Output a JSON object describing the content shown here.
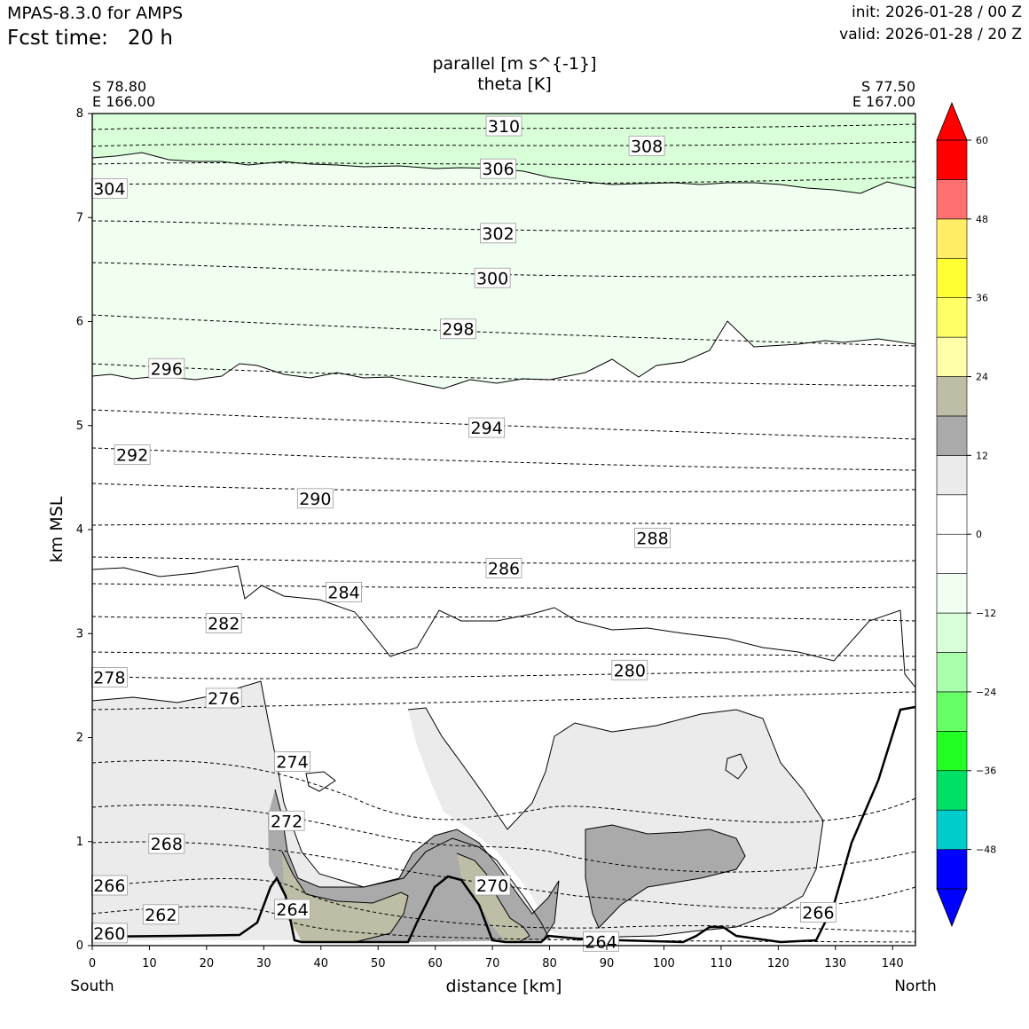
{
  "header": {
    "model": "MPAS-8.3.0 for AMPS",
    "fcst_label": "Fcst time:",
    "fcst_value": "20 h",
    "init": "init: 2026-01-28 / 00 Z",
    "valid": "valid: 2026-01-28 / 20 Z"
  },
  "chart_data": {
    "type": "cross-section contour",
    "title": "parallel [m s^{-1}]",
    "subtitle": "theta [K]",
    "xlabel": "distance [km]",
    "ylabel": "km MSL",
    "xlim": [
      0,
      144
    ],
    "ylim": [
      0,
      8
    ],
    "x_ticks": [
      0,
      10,
      20,
      30,
      40,
      50,
      60,
      70,
      80,
      90,
      100,
      110,
      120,
      130,
      140
    ],
    "y_ticks": [
      0,
      1,
      2,
      3,
      4,
      5,
      6,
      7,
      8
    ],
    "endpoints": {
      "left_lat": "S 78.80",
      "left_lon": "E 166.00",
      "left_dir": "South",
      "right_lat": "S 77.50",
      "right_lon": "E 167.00",
      "right_dir": "North"
    },
    "colorbar": {
      "levels": [
        -54,
        -48,
        -42,
        -36,
        -30,
        -24,
        -18,
        -12,
        -6,
        0,
        6,
        12,
        18,
        24,
        30,
        36,
        42,
        48,
        54,
        60
      ],
      "colors": [
        "#0000ff",
        "#00cccc",
        "#00e066",
        "#22ff22",
        "#66ff66",
        "#aaffaa",
        "#d9ffd9",
        "#f0fff0",
        "#ffffff",
        "#ffffff",
        "#ebebeb",
        "#aaaaaa",
        "#bebea6",
        "#ffffaa",
        "#ffff66",
        "#ffff33",
        "#ffee66",
        "#ff7070",
        "#ff0000"
      ],
      "tick_labels": [
        "60",
        "48",
        "36",
        "24",
        "12",
        "0",
        "−12",
        "−24",
        "−36",
        "−48"
      ],
      "tick_values": [
        60,
        48,
        36,
        24,
        12,
        0,
        -12,
        -24,
        -36,
        -48
      ]
    },
    "theta_contour_labels": [
      {
        "value": "310",
        "x": 72,
        "y": 7.88
      },
      {
        "value": "308",
        "x": 97,
        "y": 7.69
      },
      {
        "value": "306",
        "x": 71,
        "y": 7.47
      },
      {
        "value": "304",
        "x": 3,
        "y": 7.28
      },
      {
        "value": "302",
        "x": 71,
        "y": 6.85
      },
      {
        "value": "300",
        "x": 70,
        "y": 6.42
      },
      {
        "value": "298",
        "x": 64,
        "y": 5.93
      },
      {
        "value": "296",
        "x": 13,
        "y": 5.55
      },
      {
        "value": "294",
        "x": 69,
        "y": 4.98
      },
      {
        "value": "292",
        "x": 7,
        "y": 4.72
      },
      {
        "value": "290",
        "x": 39,
        "y": 4.3
      },
      {
        "value": "288",
        "x": 98,
        "y": 3.92
      },
      {
        "value": "286",
        "x": 72,
        "y": 3.63
      },
      {
        "value": "284",
        "x": 44,
        "y": 3.4
      },
      {
        "value": "282",
        "x": 23,
        "y": 3.1
      },
      {
        "value": "280",
        "x": 94,
        "y": 2.65
      },
      {
        "value": "278",
        "x": 3,
        "y": 2.58
      },
      {
        "value": "276",
        "x": 23,
        "y": 2.38
      },
      {
        "value": "274",
        "x": 35,
        "y": 1.77
      },
      {
        "value": "272",
        "x": 34,
        "y": 1.2
      },
      {
        "value": "270",
        "x": 70,
        "y": 0.58
      },
      {
        "value": "268",
        "x": 13,
        "y": 0.98
      },
      {
        "value": "266",
        "x": 3,
        "y": 0.58
      },
      {
        "value": "266",
        "x": 127,
        "y": 0.32
      },
      {
        "value": "264",
        "x": 35,
        "y": 0.35
      },
      {
        "value": "264",
        "x": 89,
        "y": 0.04
      },
      {
        "value": "262",
        "x": 12,
        "y": 0.3
      },
      {
        "value": "260",
        "x": 3,
        "y": 0.12
      }
    ]
  }
}
